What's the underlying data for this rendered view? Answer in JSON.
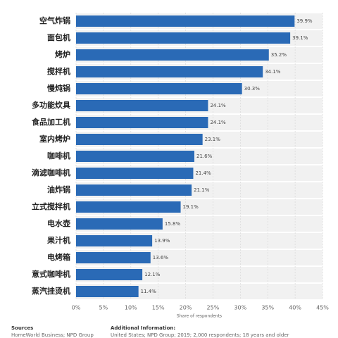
{
  "chart_data": {
    "type": "bar",
    "orientation": "horizontal",
    "categories": [
      "空气炸锅",
      "面包机",
      "烤炉",
      "搅拌机",
      "慢炖锅",
      "多功能炊具",
      "食品加工机",
      "室内烤炉",
      "咖啡机",
      "滴滤咖啡机",
      "油炸锅",
      "立式搅拌机",
      "电水壶",
      "果汁机",
      "电烤箱",
      "意式咖啡机",
      "蒸汽挂烫机"
    ],
    "values": [
      39.9,
      39.1,
      35.2,
      34.1,
      30.3,
      24.1,
      24.1,
      23.1,
      21.6,
      21.4,
      21.1,
      19.1,
      15.8,
      13.9,
      13.6,
      12.1,
      11.4
    ],
    "value_labels": [
      "39.9%",
      "39.1%",
      "35.2%",
      "34.1%",
      "30.3%",
      "24.1%",
      "24.1%",
      "23.1%",
      "21.6%",
      "21.4%",
      "21.1%",
      "19.1%",
      "15.8%",
      "13.9%",
      "13.6%",
      "12.1%",
      "11.4%"
    ],
    "color": "#2a6ab6",
    "xlim": [
      0,
      45
    ],
    "xticks": [
      {
        "value": 0,
        "label": "0%"
      },
      {
        "value": 5,
        "label": "5%"
      },
      {
        "value": 10,
        "label": "10%"
      },
      {
        "value": 15,
        "label": "15%"
      },
      {
        "value": 20,
        "label": "20%"
      },
      {
        "value": 25,
        "label": "25%"
      },
      {
        "value": 30,
        "label": "30%"
      },
      {
        "value": 35,
        "label": "35%"
      },
      {
        "value": 40,
        "label": "40%"
      },
      {
        "value": 45,
        "label": "45%"
      }
    ],
    "xlabel": "Share of respondents",
    "grid": true
  },
  "footer": {
    "sources_title": "Sources",
    "sources": "HomeWorld Business; NPD Group",
    "info_title": "Additional Information:",
    "info": "United States; NPD Group; 2019; 2,000 respondents; 18 years and older"
  }
}
